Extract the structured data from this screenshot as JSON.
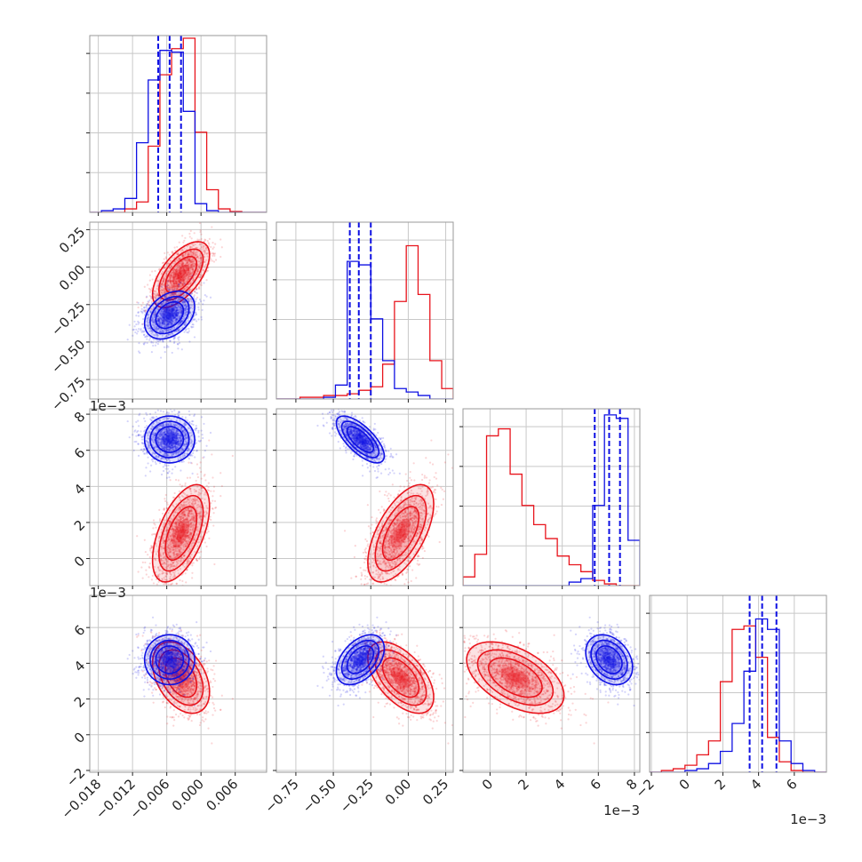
{
  "colors": {
    "red": "#e8141c",
    "blue": "#0e10e3",
    "grid": "#c8c8c8",
    "frame": "#9a9a9a",
    "text": "#222222"
  },
  "chart_data": {
    "type": "corner",
    "params": [
      {
        "lim": [
          -0.0195,
          0.0115
        ],
        "ticks": [
          -0.018,
          -0.012,
          -0.006,
          0.0,
          0.006
        ],
        "tick_labels": [
          "−0.018",
          "−0.012",
          "−0.006",
          "0.000",
          "0.006"
        ],
        "offset": ""
      },
      {
        "lim": [
          -0.88,
          0.3
        ],
        "ticks": [
          -0.75,
          -0.5,
          -0.25,
          0.0,
          0.25
        ],
        "tick_labels": [
          "−0.75",
          "−0.50",
          "−0.25",
          "0.00",
          "0.25"
        ],
        "offset": ""
      },
      {
        "lim": [
          -1.5,
          8.3
        ],
        "ticks": [
          0,
          2,
          4,
          6,
          8
        ],
        "tick_labels": [
          "0",
          "2",
          "4",
          "6",
          "8"
        ],
        "offset": "1e−3"
      },
      {
        "lim": [
          -2.1,
          7.8
        ],
        "ticks": [
          -2,
          0,
          2,
          4,
          6
        ],
        "tick_labels": [
          "−2",
          "0",
          "2",
          "4",
          "6"
        ],
        "offset": "1e−3"
      }
    ],
    "series": [
      {
        "name": "red",
        "mean": [
          -0.0035,
          -0.05,
          1.4,
          3.2
        ],
        "sd": [
          0.0025,
          0.11,
          1.35,
          1.0
        ],
        "corr": [
          [
            1,
            0.6,
            0.55,
            -0.4
          ],
          [
            0.6,
            1,
            0.6,
            -0.55
          ],
          [
            0.55,
            0.6,
            1,
            -0.5
          ],
          [
            -0.4,
            -0.55,
            -0.5,
            1
          ]
        ],
        "hist": [
          {
            "edges": [
              -0.0195,
              -0.01745,
              -0.0154,
              -0.01335,
              -0.0113,
              -0.00925,
              -0.0072,
              -0.00515,
              -0.0031,
              -0.00105,
              0.001,
              0.00305,
              0.0051,
              0.00715,
              0.0092,
              0.0115
            ],
            "counts": [
              0,
              0,
              0,
              0.02,
              0.06,
              0.38,
              0.79,
              0.94,
              1.0,
              0.46,
              0.13,
              0.02,
              0.005,
              0,
              0
            ]
          },
          {
            "edges": [
              -0.88,
              -0.8012,
              -0.7224,
              -0.6436,
              -0.5648,
              -0.486,
              -0.4072,
              -0.3284,
              -0.2496,
              -0.1708,
              -0.092,
              -0.0132,
              0.0656,
              0.1444,
              0.2232,
              0.3
            ],
            "counts": [
              0,
              0,
              0.01,
              0.01,
              0.02,
              0.02,
              0.03,
              0.05,
              0.07,
              0.2,
              0.56,
              0.88,
              0.6,
              0.22,
              0.06
            ]
          },
          {
            "edges": [
              -1.5,
              -0.8467,
              -0.1933,
              0.46,
              1.1133,
              1.7667,
              2.42,
              3.0733,
              3.7267,
              4.38,
              5.0333,
              5.6867,
              6.34,
              6.9933,
              7.6467,
              8.3
            ],
            "counts": [
              0.05,
              0.18,
              0.86,
              0.9,
              0.64,
              0.46,
              0.35,
              0.27,
              0.17,
              0.12,
              0.08,
              0.03,
              0.01,
              0,
              0
            ]
          },
          {
            "edges": [
              -2.1,
              -1.44,
              -0.78,
              -0.12,
              0.54,
              1.2,
              1.86,
              2.52,
              3.18,
              3.84,
              4.5,
              5.16,
              5.82,
              6.48,
              7.14,
              7.8
            ],
            "counts": [
              0,
              0.01,
              0.02,
              0.04,
              0.1,
              0.18,
              0.52,
              0.82,
              0.84,
              0.66,
              0.2,
              0.06,
              0.01,
              0,
              0
            ]
          }
        ]
      },
      {
        "name": "blue",
        "mean": [
          -0.0055,
          -0.32,
          6.6,
          4.2
        ],
        "sd": [
          0.0022,
          0.08,
          0.65,
          0.7
        ],
        "corr": [
          [
            1,
            0.35,
            0,
            0
          ],
          [
            0.35,
            1,
            -0.7,
            0.45
          ],
          [
            0,
            -0.7,
            1,
            -0.3
          ],
          [
            0,
            0.45,
            -0.3,
            1
          ]
        ],
        "hist": [
          {
            "edges": [
              -0.0195,
              -0.01745,
              -0.0154,
              -0.01335,
              -0.0113,
              -0.00925,
              -0.0072,
              -0.00515,
              -0.0031,
              -0.00105,
              0.001,
              0.00305,
              0.0051,
              0.00715,
              0.0092,
              0.0115
            ],
            "counts": [
              0,
              0.01,
              0.02,
              0.08,
              0.4,
              0.76,
              0.93,
              0.92,
              0.58,
              0.05,
              0.01,
              0,
              0,
              0,
              0
            ]
          },
          {
            "edges": [
              -0.88,
              -0.8012,
              -0.7224,
              -0.6436,
              -0.5648,
              -0.486,
              -0.4072,
              -0.3284,
              -0.2496,
              -0.1708,
              -0.092,
              -0.0132,
              0.0656,
              0.1444,
              0.2232,
              0.3
            ],
            "counts": [
              0,
              0,
              0,
              0,
              0.01,
              0.08,
              0.79,
              0.77,
              0.46,
              0.22,
              0.06,
              0.04,
              0.02,
              0,
              0
            ]
          },
          {
            "edges": [
              -1.5,
              -0.8467,
              -0.1933,
              0.46,
              1.1133,
              1.7667,
              2.42,
              3.0733,
              3.7267,
              4.38,
              5.0333,
              5.6867,
              6.34,
              6.9933,
              7.6467,
              8.3
            ],
            "counts": [
              0,
              0,
              0,
              0,
              0,
              0,
              0,
              0,
              0,
              0.02,
              0.04,
              0.46,
              0.98,
              0.96,
              0.26
            ]
          },
          {
            "edges": [
              -2.1,
              -1.44,
              -0.78,
              -0.12,
              0.54,
              1.2,
              1.86,
              2.52,
              3.18,
              3.84,
              4.5,
              5.16,
              5.82,
              6.48,
              7.14,
              7.8
            ],
            "counts": [
              0,
              0,
              0,
              0.01,
              0.02,
              0.05,
              0.12,
              0.28,
              0.58,
              0.88,
              0.82,
              0.18,
              0.05,
              0.01,
              0
            ]
          }
        ],
        "quantiles": [
          [
            -0.0075,
            -0.0055,
            -0.0035
          ],
          [
            -0.39,
            -0.33,
            -0.25
          ],
          [
            5.8,
            6.6,
            7.2
          ],
          [
            3.5,
            4.2,
            5.0
          ]
        ]
      }
    ],
    "grid": true
  }
}
